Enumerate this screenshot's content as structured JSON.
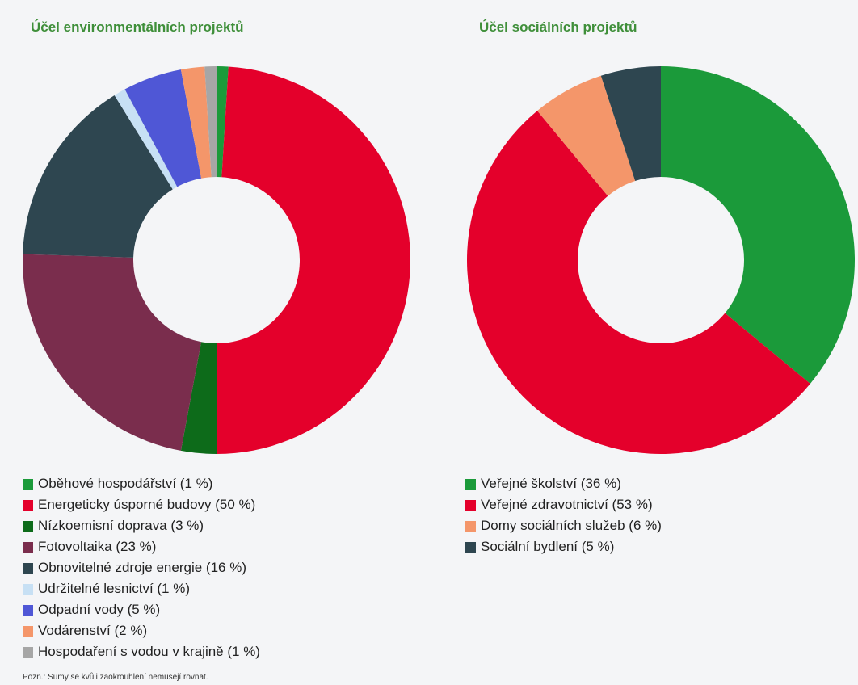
{
  "chart_data": [
    {
      "type": "pie",
      "title": "Účel environmentálních projektů",
      "donut": true,
      "legend_position": "bottom",
      "series": [
        {
          "name": "Oběhové hospodářství",
          "label": "Oběhové hospodářství (1 %)",
          "value": 1,
          "color": "#1b9a3a"
        },
        {
          "name": "Energeticky úsporné budovy",
          "label": "Energeticky úsporné budovy (50 %)",
          "value": 50,
          "color": "#e4002b"
        },
        {
          "name": "Nízkoemisní doprava",
          "label": "Nízkoemisní doprava (3 %)",
          "value": 3,
          "color": "#0d6b1a"
        },
        {
          "name": "Fotovoltaika",
          "label": "Fotovoltaika (23 %)",
          "value": 23,
          "color": "#7a2d4d"
        },
        {
          "name": "Obnovitelné zdroje energie",
          "label": "Obnovitelné zdroje energie (16 %)",
          "value": 16,
          "color": "#2e4650"
        },
        {
          "name": "Udržitelné lesnictví",
          "label": "Udržitelné lesnictví (1 %)",
          "value": 1,
          "color": "#c7e0f4"
        },
        {
          "name": "Odpadní vody",
          "label": "Odpadní vody (5 %)",
          "value": 5,
          "color": "#4f57d6"
        },
        {
          "name": "Vodárenství",
          "label": "Vodárenství (2 %)",
          "value": 2,
          "color": "#f4966a"
        },
        {
          "name": "Hospodaření s vodou v krajině",
          "label": "Hospodaření s vodou v krajině (1 %)",
          "value": 1,
          "color": "#a6a6a6"
        }
      ]
    },
    {
      "type": "pie",
      "title": "Účel sociálních projektů",
      "donut": true,
      "legend_position": "bottom",
      "series": [
        {
          "name": "Veřejné školství",
          "label": "Veřejné školství (36 %)",
          "value": 36,
          "color": "#1b9a3a"
        },
        {
          "name": "Veřejné zdravotnictví",
          "label": "Veřejné zdravotnictví (53 %)",
          "value": 53,
          "color": "#e4002b"
        },
        {
          "name": "Domy sociálních služeb",
          "label": "Domy sociálních služeb (6 %)",
          "value": 6,
          "color": "#f4966a"
        },
        {
          "name": "Sociální bydlení",
          "label": "Sociální bydlení (5 %)",
          "value": 5,
          "color": "#2e4650"
        }
      ]
    }
  ],
  "note": "Pozn.: Sumy se kvůli zaokrouhlení nemusejí rovnat."
}
